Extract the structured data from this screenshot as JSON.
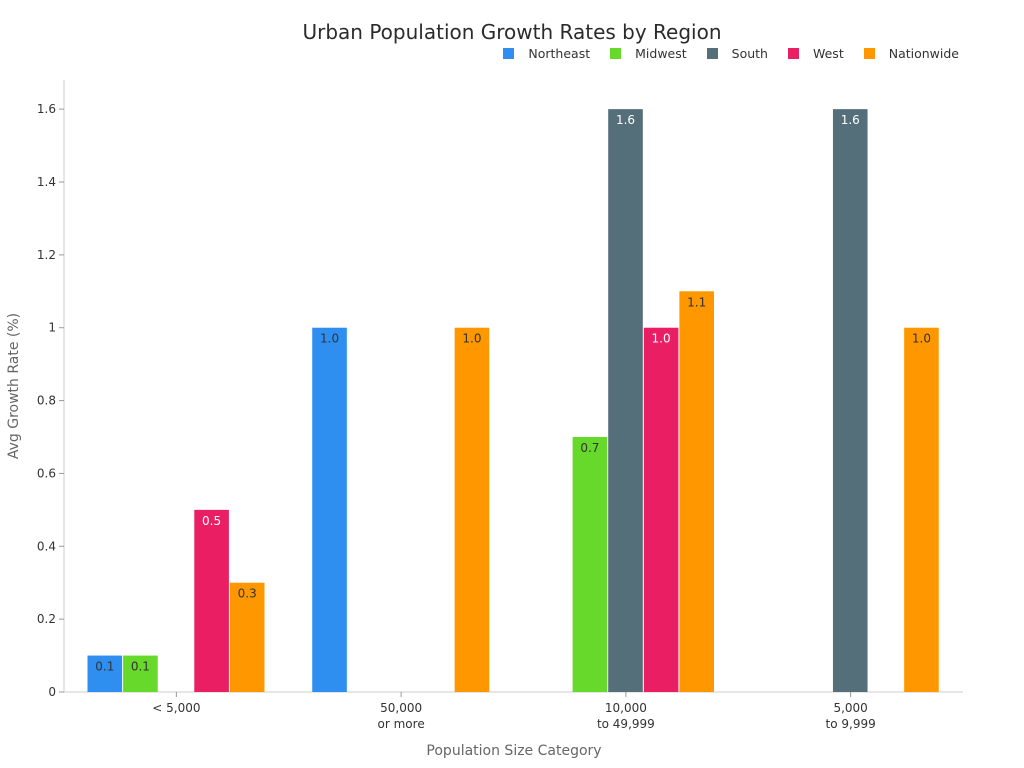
{
  "chart_data": {
    "type": "bar",
    "title": "Urban Population Growth Rates by Region",
    "xlabel": "Population Size Category",
    "ylabel": "Avg Growth Rate (%)",
    "ylim": [
      0,
      1.68
    ],
    "yticks": [
      {
        "value": 0,
        "label": "0"
      },
      {
        "value": 0.2,
        "label": "0.2"
      },
      {
        "value": 0.4,
        "label": "0.4"
      },
      {
        "value": 0.6,
        "label": "0.6"
      },
      {
        "value": 0.8,
        "label": "0.8"
      },
      {
        "value": 1.0,
        "label": "1"
      },
      {
        "value": 1.2,
        "label": "1.2"
      },
      {
        "value": 1.4,
        "label": "1.4"
      },
      {
        "value": 1.6,
        "label": "1.6"
      }
    ],
    "categories": [
      {
        "line1": "< 5,000",
        "line2": ""
      },
      {
        "line1": "50,000",
        "line2": "or more"
      },
      {
        "line1": "10,000",
        "line2": "to 49,999"
      },
      {
        "line1": "5,000",
        "line2": "to 9,999"
      }
    ],
    "legend_position": "top-right",
    "series": [
      {
        "name": "Northeast",
        "color": "#2E8FF0",
        "label_color": "#333333",
        "values": [
          0.1,
          1.0,
          null,
          null
        ],
        "labels": [
          "0.1",
          "1.0",
          "",
          ""
        ]
      },
      {
        "name": "Midwest",
        "color": "#66D92B",
        "label_color": "#333333",
        "values": [
          0.1,
          null,
          0.7,
          null
        ],
        "labels": [
          "0.1",
          "",
          "0.7",
          ""
        ]
      },
      {
        "name": "South",
        "color": "#546E7A",
        "label_color": "#ffffff",
        "values": [
          null,
          null,
          1.6,
          1.6
        ],
        "labels": [
          "",
          "",
          "1.6",
          "1.6"
        ]
      },
      {
        "name": "West",
        "color": "#E91E63",
        "label_color": "#ffffff",
        "values": [
          0.5,
          null,
          1.0,
          null
        ],
        "labels": [
          "0.5",
          "",
          "1.0",
          ""
        ]
      },
      {
        "name": "Nationwide",
        "color": "#FF9800",
        "label_color": "#333333",
        "values": [
          0.3,
          1.0,
          1.1,
          1.0
        ],
        "labels": [
          "0.3",
          "1.0",
          "1.1",
          "1.0"
        ]
      }
    ]
  }
}
